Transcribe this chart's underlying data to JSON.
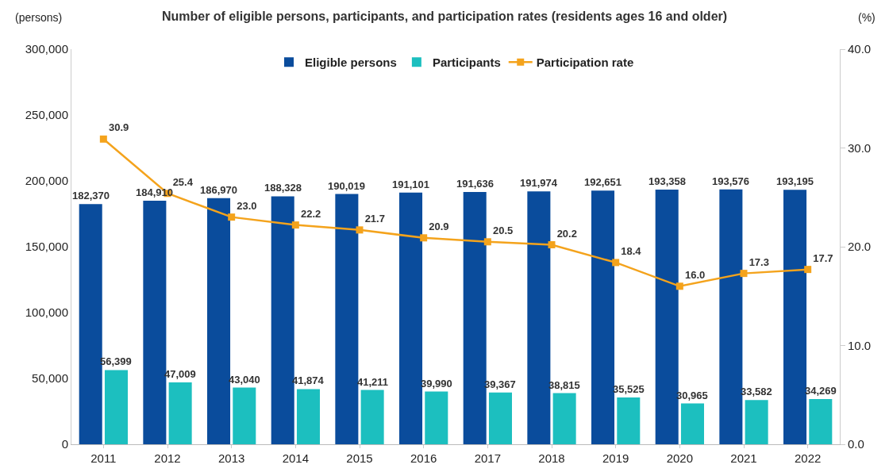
{
  "chart_data": {
    "type": "bar",
    "title": "Number of eligible persons, participants, and participation rates (residents ages 16 and older)",
    "ylabel": "(persons)",
    "y2label": "(%)",
    "categories": [
      "2011",
      "2012",
      "2013",
      "2014",
      "2015",
      "2016",
      "2017",
      "2018",
      "2019",
      "2020",
      "2021",
      "2022"
    ],
    "series": [
      {
        "name": "Eligible persons",
        "color": "#0a4c9c",
        "values": [
          182370,
          184910,
          186970,
          188328,
          190019,
          191101,
          191636,
          191974,
          192651,
          193358,
          193576,
          193195
        ],
        "value_labels": [
          "182,370",
          "184,910",
          "186,970",
          "188,328",
          "190,019",
          "191,101",
          "191,636",
          "191,974",
          "192,651",
          "193,358",
          "193,576",
          "193,195"
        ]
      },
      {
        "name": "Participants",
        "color": "#1cbfbf",
        "values": [
          56399,
          47009,
          43040,
          41874,
          41211,
          39990,
          39367,
          38815,
          35525,
          30965,
          33582,
          34269
        ],
        "value_labels": [
          "56,399",
          "47,009",
          "43,040",
          "41,874",
          "41,211",
          "39,990",
          "39,367",
          "38,815",
          "35,525",
          "30,965",
          "33,582",
          "34,269"
        ]
      },
      {
        "name": "Participation rate",
        "type": "line",
        "axis": "y2",
        "color": "#f4a31c",
        "marker": "square",
        "values": [
          30.9,
          25.4,
          23.0,
          22.2,
          21.7,
          20.9,
          20.5,
          20.2,
          18.4,
          16.0,
          17.3,
          17.7
        ],
        "value_labels": [
          "30.9",
          "25.4",
          "23.0",
          "22.2",
          "21.7",
          "20.9",
          "20.5",
          "20.2",
          "18.4",
          "16.0",
          "17.3",
          "17.7"
        ]
      }
    ],
    "ylim": [
      0,
      300000
    ],
    "yticks": [
      0,
      {
        "value": 50000,
        "label": "50,000"
      },
      {
        "value": 100000,
        "label": "100,000"
      },
      {
        "value": 150000,
        "label": "150,000"
      },
      {
        "value": 200000,
        "label": "200,000"
      },
      {
        "value": 250000,
        "label": "250,000"
      },
      {
        "value": 300000,
        "label": "300,000"
      }
    ],
    "y2lim": [
      0,
      40
    ],
    "y2ticks": [
      {
        "value": 0,
        "label": "0.0"
      },
      {
        "value": 10,
        "label": "10.0"
      },
      {
        "value": 20,
        "label": "20.0"
      },
      {
        "value": 30,
        "label": "30.0"
      },
      {
        "value": 40,
        "label": "40.0"
      }
    ],
    "grid": false,
    "legend": "top"
  }
}
